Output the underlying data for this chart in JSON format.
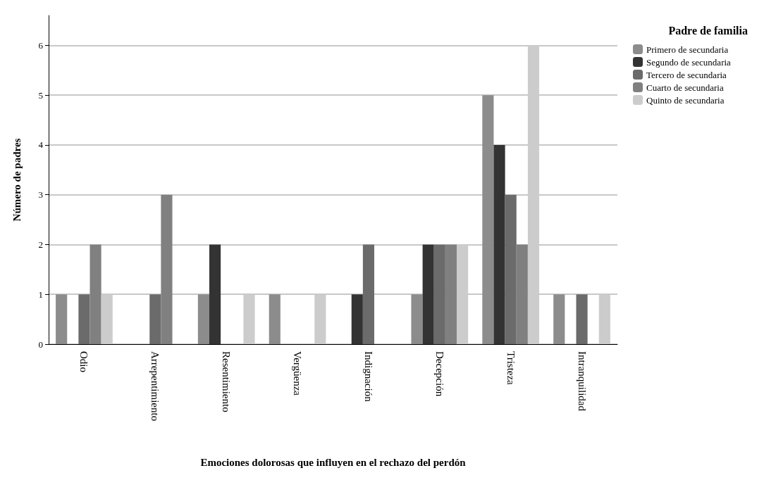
{
  "chart_data": {
    "type": "bar",
    "xlabel": "Emociones dolorosas que influyen en el rechazo del perdón",
    "ylabel": "Número de padres",
    "legend_title": "Padre de familia",
    "legend": "top right",
    "grid": "y",
    "categories": [
      "Odio",
      "Arrepentimiento",
      "Resentimiento",
      "Vergüenza",
      "Indignación",
      "Decepción",
      "Tristeza",
      "Intranquilidad"
    ],
    "ylim": [
      0,
      6.6
    ],
    "yticks": [
      0,
      1,
      2,
      3,
      4,
      5,
      6
    ],
    "series": [
      {
        "name": "Primero de secundaria",
        "color": "#8c8c8c",
        "values": [
          1,
          0,
          1,
          1,
          0,
          1,
          5,
          1
        ]
      },
      {
        "name": "Segundo de secundaria",
        "color": "#333333",
        "values": [
          0,
          0,
          2,
          0,
          1,
          2,
          4,
          0
        ]
      },
      {
        "name": "Tercero de secundaria",
        "color": "#6b6b6b",
        "values": [
          1,
          1,
          0,
          0,
          2,
          2,
          3,
          1
        ]
      },
      {
        "name": "Cuarto de secundaria",
        "color": "#808080",
        "values": [
          2,
          3,
          0,
          0,
          0,
          2,
          2,
          0
        ]
      },
      {
        "name": "Quinto de secundaria",
        "color": "#cccccc",
        "values": [
          1,
          0,
          1,
          1,
          0,
          2,
          6,
          1
        ]
      }
    ]
  }
}
